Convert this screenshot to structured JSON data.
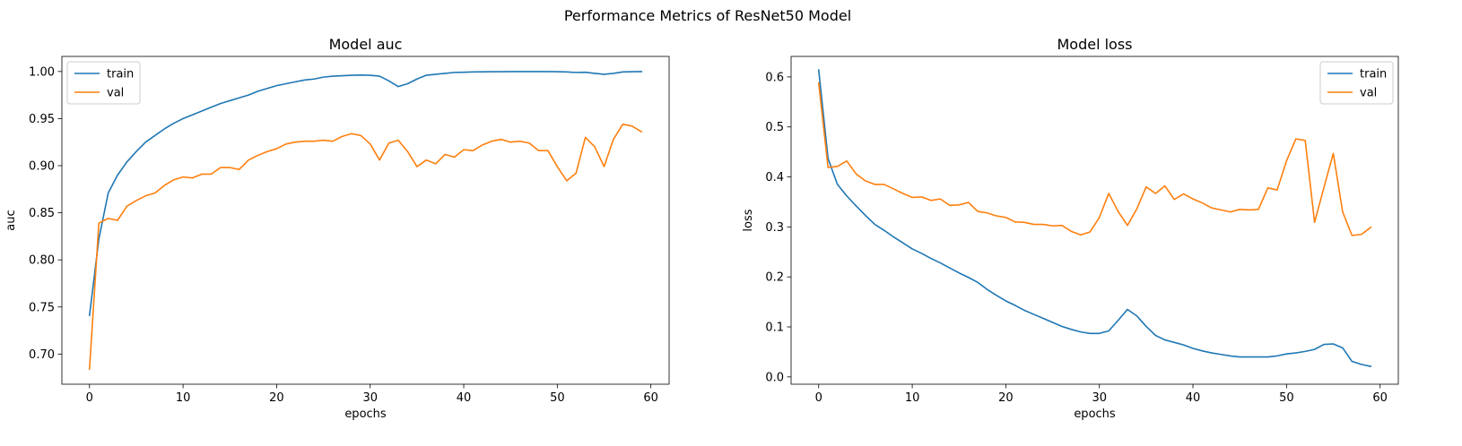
{
  "suptitle": "Performance Metrics of ResNet50 Model",
  "colors": {
    "train": "#1f77b4",
    "val": "#ff7f0e"
  },
  "chart_data": [
    {
      "type": "line",
      "title": "Model auc",
      "xlabel": "epochs",
      "ylabel": "auc",
      "xlim": [
        -2.95,
        61.95
      ],
      "ylim": [
        0.668,
        1.016
      ],
      "xticks": [
        0,
        10,
        20,
        30,
        40,
        50,
        60
      ],
      "yticks": [
        0.7,
        0.75,
        0.8,
        0.85,
        0.9,
        0.95,
        1.0
      ],
      "ytick_decimals": 2,
      "legend": "upper left",
      "grid": false,
      "series": [
        {
          "name": "train",
          "color": "#1f77b4",
          "values": [
            0.741,
            0.822,
            0.871,
            0.89,
            0.904,
            0.915,
            0.925,
            0.932,
            0.939,
            0.945,
            0.95,
            0.954,
            0.958,
            0.962,
            0.966,
            0.969,
            0.972,
            0.975,
            0.979,
            0.982,
            0.985,
            0.987,
            0.989,
            0.991,
            0.992,
            0.994,
            0.995,
            0.9955,
            0.996,
            0.9962,
            0.996,
            0.995,
            0.99,
            0.984,
            0.987,
            0.992,
            0.996,
            0.997,
            0.998,
            0.999,
            0.9992,
            0.9995,
            0.9997,
            0.9998,
            0.9998,
            0.9999,
            0.9999,
            0.9999,
            0.9999,
            0.9999,
            0.9998,
            0.9995,
            0.999,
            0.9992,
            0.998,
            0.997,
            0.998,
            0.9995,
            0.9998,
            0.9999
          ]
        },
        {
          "name": "val",
          "color": "#ff7f0e",
          "values": [
            0.684,
            0.839,
            0.844,
            0.842,
            0.857,
            0.863,
            0.868,
            0.871,
            0.879,
            0.885,
            0.888,
            0.887,
            0.891,
            0.891,
            0.898,
            0.898,
            0.896,
            0.906,
            0.911,
            0.915,
            0.918,
            0.923,
            0.925,
            0.926,
            0.926,
            0.927,
            0.926,
            0.931,
            0.934,
            0.932,
            0.923,
            0.906,
            0.924,
            0.927,
            0.915,
            0.899,
            0.906,
            0.902,
            0.912,
            0.909,
            0.917,
            0.916,
            0.922,
            0.926,
            0.928,
            0.925,
            0.926,
            0.924,
            0.916,
            0.916,
            0.899,
            0.884,
            0.892,
            0.93,
            0.92,
            0.899,
            0.928,
            0.944,
            0.942,
            0.936
          ]
        }
      ]
    },
    {
      "type": "line",
      "title": "Model loss",
      "xlabel": "epochs",
      "ylabel": "loss",
      "xlim": [
        -2.95,
        61.95
      ],
      "ylim": [
        -0.0146,
        0.641
      ],
      "xticks": [
        0,
        10,
        20,
        30,
        40,
        50,
        60
      ],
      "yticks": [
        0.0,
        0.1,
        0.2,
        0.3,
        0.4,
        0.5,
        0.6
      ],
      "ytick_decimals": 1,
      "legend": "upper right",
      "grid": false,
      "series": [
        {
          "name": "train",
          "color": "#1f77b4",
          "values": [
            0.614,
            0.437,
            0.385,
            0.362,
            0.342,
            0.323,
            0.305,
            0.293,
            0.28,
            0.268,
            0.256,
            0.247,
            0.237,
            0.228,
            0.218,
            0.208,
            0.199,
            0.189,
            0.175,
            0.163,
            0.152,
            0.143,
            0.133,
            0.125,
            0.117,
            0.109,
            0.101,
            0.095,
            0.09,
            0.087,
            0.087,
            0.092,
            0.113,
            0.135,
            0.122,
            0.101,
            0.083,
            0.074,
            0.069,
            0.064,
            0.057,
            0.052,
            0.048,
            0.045,
            0.042,
            0.04,
            0.04,
            0.04,
            0.04,
            0.042,
            0.046,
            0.048,
            0.051,
            0.055,
            0.065,
            0.066,
            0.058,
            0.031,
            0.025,
            0.021
          ]
        },
        {
          "name": "val",
          "color": "#ff7f0e",
          "values": [
            0.588,
            0.419,
            0.421,
            0.432,
            0.406,
            0.392,
            0.385,
            0.385,
            0.376,
            0.367,
            0.359,
            0.36,
            0.353,
            0.356,
            0.343,
            0.344,
            0.349,
            0.331,
            0.328,
            0.322,
            0.319,
            0.31,
            0.309,
            0.305,
            0.305,
            0.302,
            0.303,
            0.291,
            0.284,
            0.29,
            0.319,
            0.367,
            0.331,
            0.303,
            0.336,
            0.38,
            0.367,
            0.382,
            0.355,
            0.366,
            0.356,
            0.348,
            0.338,
            0.334,
            0.33,
            0.335,
            0.334,
            0.335,
            0.378,
            0.374,
            0.432,
            0.476,
            0.473,
            0.309,
            0.379,
            0.447,
            0.33,
            0.283,
            0.285,
            0.299
          ]
        }
      ]
    }
  ]
}
